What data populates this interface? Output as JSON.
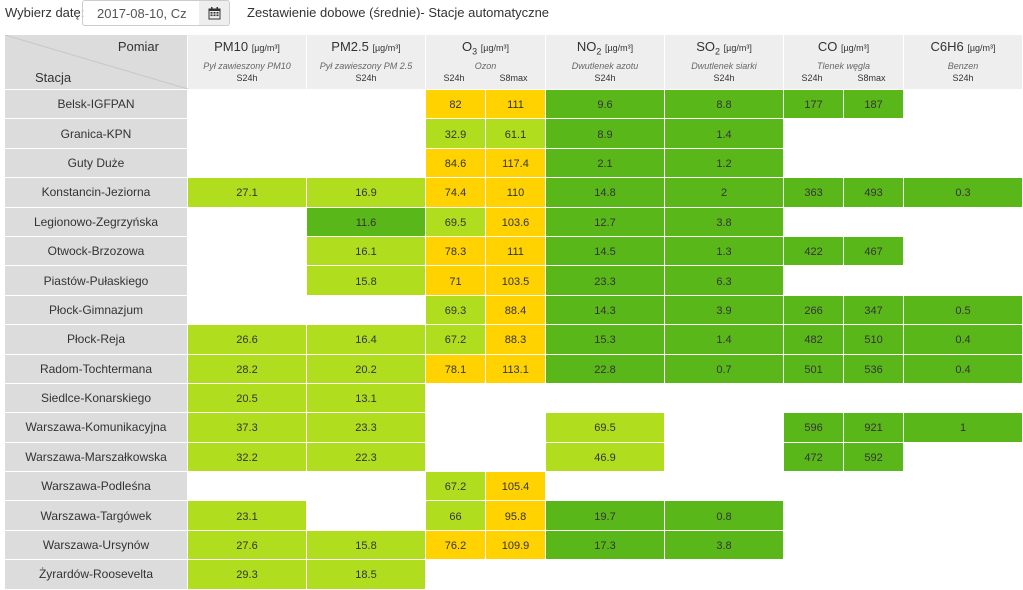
{
  "toolbar": {
    "date_label": "Wybierz datę:",
    "date_value": "2017-08-10, Cz",
    "title": "Zestawienie dobowe (średnie)- Stacje automatyczne"
  },
  "header": {
    "corner_top": "Pomiar",
    "corner_bottom": "Stacja",
    "pollutants": [
      {
        "name": "PM10",
        "name_sub": "",
        "unit": "[µg/m³]",
        "desc": "Pył zawieszony PM10",
        "agg": [
          "S24h"
        ]
      },
      {
        "name": "PM2.5",
        "name_sub": "",
        "unit": "[µg/m³]",
        "desc": "Pył zawieszony PM 2.5",
        "agg": [
          "S24h"
        ]
      },
      {
        "name": "O",
        "name_sub": "3",
        "unit": "[µg/m³]",
        "desc": "Ozon",
        "agg": [
          "S24h",
          "S8max"
        ]
      },
      {
        "name": "NO",
        "name_sub": "2",
        "unit": "[µg/m³]",
        "desc": "Dwutlenek azotu",
        "agg": [
          "S24h"
        ]
      },
      {
        "name": "SO",
        "name_sub": "2",
        "unit": "[µg/m³]",
        "desc": "Dwutlenek siarki",
        "agg": [
          "S24h"
        ]
      },
      {
        "name": "CO",
        "name_sub": "",
        "unit": "[µg/m³]",
        "desc": "Tlenek węgla",
        "agg": [
          "S24h",
          "S8max"
        ]
      },
      {
        "name": "C6H6",
        "name_sub": "",
        "unit": "[µg/m³]",
        "desc": "Benzen",
        "agg": [
          "S24h"
        ]
      }
    ]
  },
  "colors": {
    "light_green": "#b0dd1d",
    "dark_green": "#5ab719",
    "yellow": "#ffd200",
    "empty": "#ffffff",
    "station_bg": "#dcdcdc",
    "header_bg": "#eeeeee"
  },
  "rows": [
    {
      "station": "Belsk-IGFPAN",
      "cells": [
        [
          "",
          ""
        ],
        [
          "",
          ""
        ],
        [
          "82",
          "y"
        ],
        [
          "111",
          "y"
        ],
        [
          "9.6",
          "dg"
        ],
        [
          "8.8",
          "dg"
        ],
        [
          "177",
          "dg"
        ],
        [
          "187",
          "dg"
        ],
        [
          "",
          ""
        ]
      ]
    },
    {
      "station": "Granica-KPN",
      "cells": [
        [
          "",
          ""
        ],
        [
          "",
          ""
        ],
        [
          "32.9",
          "lg"
        ],
        [
          "61.1",
          "lg"
        ],
        [
          "8.9",
          "dg"
        ],
        [
          "1.4",
          "dg"
        ],
        [
          "",
          ""
        ],
        [
          "",
          ""
        ],
        [
          "",
          ""
        ]
      ]
    },
    {
      "station": "Guty Duże",
      "cells": [
        [
          "",
          ""
        ],
        [
          "",
          ""
        ],
        [
          "84.6",
          "y"
        ],
        [
          "117.4",
          "y"
        ],
        [
          "2.1",
          "dg"
        ],
        [
          "1.2",
          "dg"
        ],
        [
          "",
          ""
        ],
        [
          "",
          ""
        ],
        [
          "",
          ""
        ]
      ]
    },
    {
      "station": "Konstancin-Jeziorna",
      "cells": [
        [
          "27.1",
          "lg"
        ],
        [
          "16.9",
          "lg"
        ],
        [
          "74.4",
          "y"
        ],
        [
          "110",
          "y"
        ],
        [
          "14.8",
          "dg"
        ],
        [
          "2",
          "dg"
        ],
        [
          "363",
          "dg"
        ],
        [
          "493",
          "dg"
        ],
        [
          "0.3",
          "dg"
        ]
      ]
    },
    {
      "station": "Legionowo-Zegrzyńska",
      "cells": [
        [
          "",
          ""
        ],
        [
          "11.6",
          "dg"
        ],
        [
          "69.5",
          "lg"
        ],
        [
          "103.6",
          "y"
        ],
        [
          "12.7",
          "dg"
        ],
        [
          "3.8",
          "dg"
        ],
        [
          "",
          ""
        ],
        [
          "",
          ""
        ],
        [
          "",
          ""
        ]
      ]
    },
    {
      "station": "Otwock-Brzozowa",
      "cells": [
        [
          "",
          ""
        ],
        [
          "16.1",
          "lg"
        ],
        [
          "78.3",
          "y"
        ],
        [
          "111",
          "y"
        ],
        [
          "14.5",
          "dg"
        ],
        [
          "1.3",
          "dg"
        ],
        [
          "422",
          "dg"
        ],
        [
          "467",
          "dg"
        ],
        [
          "",
          ""
        ]
      ]
    },
    {
      "station": "Piastów-Pułaskiego",
      "cells": [
        [
          "",
          ""
        ],
        [
          "15.8",
          "lg"
        ],
        [
          "71",
          "y"
        ],
        [
          "103.5",
          "y"
        ],
        [
          "23.3",
          "dg"
        ],
        [
          "6.3",
          "dg"
        ],
        [
          "",
          ""
        ],
        [
          "",
          ""
        ],
        [
          "",
          ""
        ]
      ]
    },
    {
      "station": "Płock-Gimnazjum",
      "cells": [
        [
          "",
          ""
        ],
        [
          "",
          ""
        ],
        [
          "69.3",
          "lg"
        ],
        [
          "88.4",
          "y"
        ],
        [
          "14.3",
          "dg"
        ],
        [
          "3.9",
          "dg"
        ],
        [
          "266",
          "dg"
        ],
        [
          "347",
          "dg"
        ],
        [
          "0.5",
          "dg"
        ]
      ]
    },
    {
      "station": "Płock-Reja",
      "cells": [
        [
          "26.6",
          "lg"
        ],
        [
          "16.4",
          "lg"
        ],
        [
          "67.2",
          "lg"
        ],
        [
          "88.3",
          "y"
        ],
        [
          "15.3",
          "dg"
        ],
        [
          "1.4",
          "dg"
        ],
        [
          "482",
          "dg"
        ],
        [
          "510",
          "dg"
        ],
        [
          "0.4",
          "dg"
        ]
      ]
    },
    {
      "station": "Radom-Tochtermana",
      "cells": [
        [
          "28.2",
          "lg"
        ],
        [
          "20.2",
          "lg"
        ],
        [
          "78.1",
          "y"
        ],
        [
          "113.1",
          "y"
        ],
        [
          "22.8",
          "dg"
        ],
        [
          "0.7",
          "dg"
        ],
        [
          "501",
          "dg"
        ],
        [
          "536",
          "dg"
        ],
        [
          "0.4",
          "dg"
        ]
      ]
    },
    {
      "station": "Siedlce-Konarskiego",
      "cells": [
        [
          "20.5",
          "lg"
        ],
        [
          "13.1",
          "lg"
        ],
        [
          "",
          ""
        ],
        [
          "",
          ""
        ],
        [
          "",
          ""
        ],
        [
          "",
          ""
        ],
        [
          "",
          ""
        ],
        [
          "",
          ""
        ],
        [
          "",
          ""
        ]
      ]
    },
    {
      "station": "Warszawa-Komunikacyjna",
      "cells": [
        [
          "37.3",
          "lg"
        ],
        [
          "23.3",
          "lg"
        ],
        [
          "",
          ""
        ],
        [
          "",
          ""
        ],
        [
          "69.5",
          "lg"
        ],
        [
          "",
          ""
        ],
        [
          "596",
          "dg"
        ],
        [
          "921",
          "dg"
        ],
        [
          "1",
          "dg"
        ]
      ]
    },
    {
      "station": "Warszawa-Marszałkowska",
      "cells": [
        [
          "32.2",
          "lg"
        ],
        [
          "22.3",
          "lg"
        ],
        [
          "",
          ""
        ],
        [
          "",
          ""
        ],
        [
          "46.9",
          "lg"
        ],
        [
          "",
          ""
        ],
        [
          "472",
          "dg"
        ],
        [
          "592",
          "dg"
        ],
        [
          "",
          ""
        ]
      ]
    },
    {
      "station": "Warszawa-Podleśna",
      "cells": [
        [
          "",
          ""
        ],
        [
          "",
          ""
        ],
        [
          "67.2",
          "lg"
        ],
        [
          "105.4",
          "y"
        ],
        [
          "",
          ""
        ],
        [
          "",
          ""
        ],
        [
          "",
          ""
        ],
        [
          "",
          ""
        ],
        [
          "",
          ""
        ]
      ]
    },
    {
      "station": "Warszawa-Targówek",
      "cells": [
        [
          "23.1",
          "lg"
        ],
        [
          "",
          ""
        ],
        [
          "66",
          "lg"
        ],
        [
          "95.8",
          "y"
        ],
        [
          "19.7",
          "dg"
        ],
        [
          "0.8",
          "dg"
        ],
        [
          "",
          ""
        ],
        [
          "",
          ""
        ],
        [
          "",
          ""
        ]
      ]
    },
    {
      "station": "Warszawa-Ursynów",
      "cells": [
        [
          "27.6",
          "lg"
        ],
        [
          "15.8",
          "lg"
        ],
        [
          "76.2",
          "y"
        ],
        [
          "109.9",
          "y"
        ],
        [
          "17.3",
          "dg"
        ],
        [
          "3.8",
          "dg"
        ],
        [
          "",
          ""
        ],
        [
          "",
          ""
        ],
        [
          "",
          ""
        ]
      ]
    },
    {
      "station": "Żyrardów-Roosevelta",
      "cells": [
        [
          "29.3",
          "lg"
        ],
        [
          "18.5",
          "lg"
        ],
        [
          "",
          ""
        ],
        [
          "",
          ""
        ],
        [
          "",
          ""
        ],
        [
          "",
          ""
        ],
        [
          "",
          ""
        ],
        [
          "",
          ""
        ],
        [
          "",
          ""
        ]
      ]
    }
  ]
}
